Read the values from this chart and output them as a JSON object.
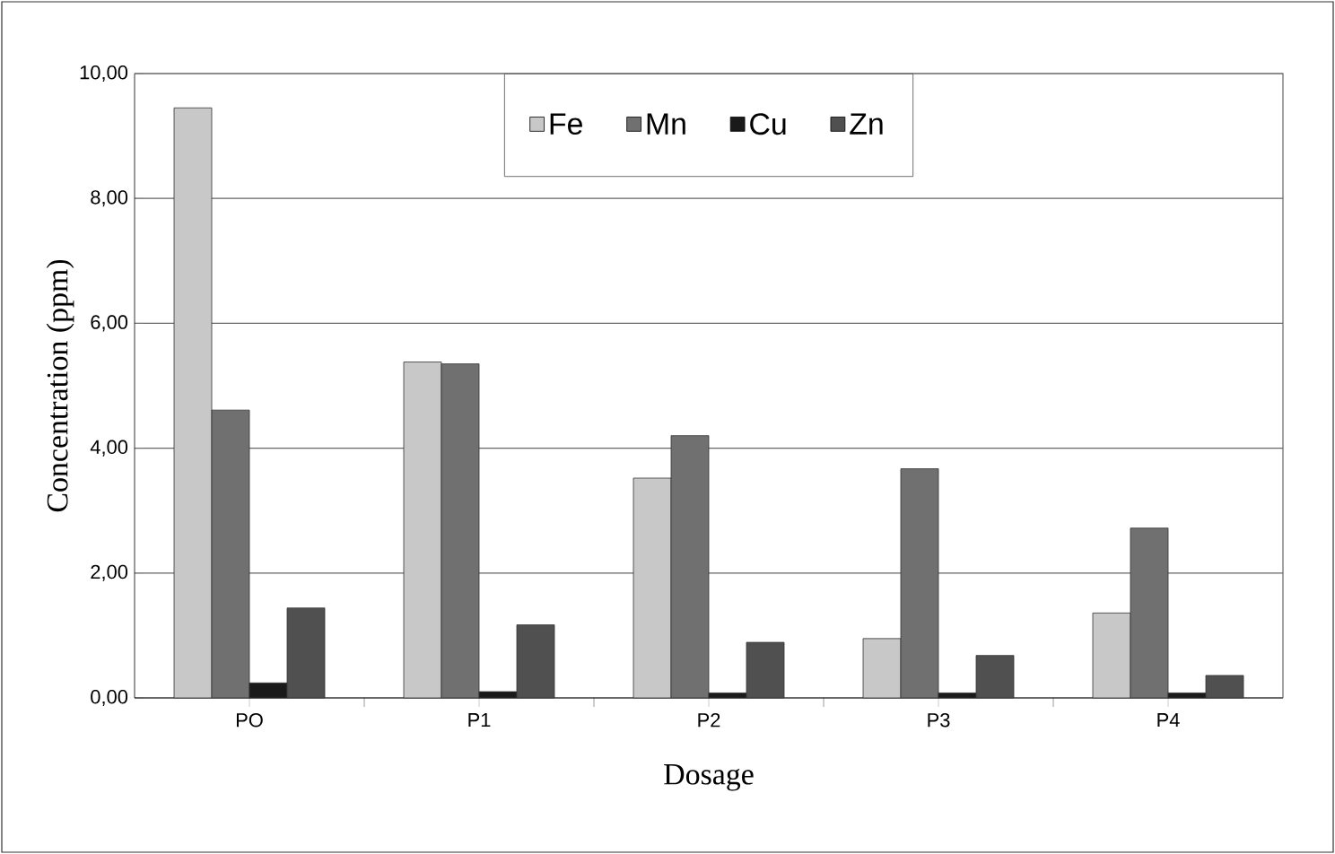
{
  "chart_data": {
    "type": "bar",
    "xlabel": "Dosage",
    "ylabel": "Concentration (ppm)",
    "categories": [
      "PO",
      "P1",
      "P2",
      "P3",
      "P4"
    ],
    "series": [
      {
        "name": "Fe",
        "color": "#c8c8c8",
        "values": [
          9.45,
          5.38,
          3.52,
          0.95,
          1.36
        ]
      },
      {
        "name": "Mn",
        "color": "#707070",
        "values": [
          4.61,
          5.35,
          4.2,
          3.67,
          2.72
        ]
      },
      {
        "name": "Cu",
        "color": "#1a1a1a",
        "values": [
          0.24,
          0.1,
          0.08,
          0.08,
          0.08
        ]
      },
      {
        "name": "Zn",
        "color": "#505050",
        "values": [
          1.44,
          1.17,
          0.89,
          0.68,
          0.36
        ]
      }
    ],
    "ylim": [
      0,
      10
    ],
    "yticks": [
      {
        "value": 0,
        "label": "0,00"
      },
      {
        "value": 2,
        "label": "2,00"
      },
      {
        "value": 4,
        "label": "4,00"
      },
      {
        "value": 6,
        "label": "6,00"
      },
      {
        "value": 8,
        "label": "8,00"
      },
      {
        "value": 10,
        "label": "10,00"
      }
    ],
    "grid": "y",
    "legend": "top"
  }
}
